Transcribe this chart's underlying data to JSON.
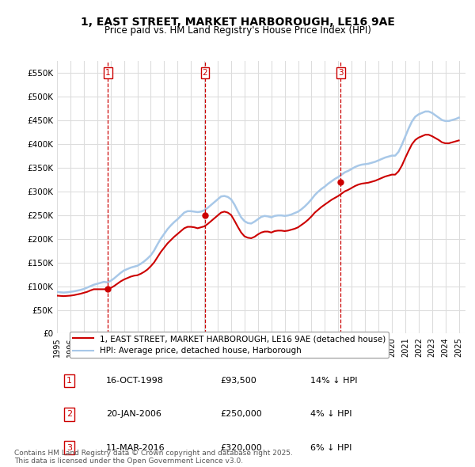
{
  "title": "1, EAST STREET, MARKET HARBOROUGH, LE16 9AE",
  "subtitle": "Price paid vs. HM Land Registry's House Price Index (HPI)",
  "hpi_color": "#a8c8e8",
  "price_color": "#cc0000",
  "background_color": "#ffffff",
  "grid_color": "#dddddd",
  "ylim": [
    0,
    575000
  ],
  "yticks": [
    0,
    50000,
    100000,
    150000,
    200000,
    250000,
    300000,
    350000,
    400000,
    450000,
    500000,
    550000
  ],
  "ytick_labels": [
    "£0",
    "£50K",
    "£100K",
    "£150K",
    "£200K",
    "£250K",
    "£300K",
    "£350K",
    "£400K",
    "£450K",
    "£500K",
    "£550K"
  ],
  "xlim_start": 1995.0,
  "xlim_end": 2025.5,
  "sale_dates": [
    1998.79,
    2006.05,
    2016.19
  ],
  "sale_prices": [
    93500,
    250000,
    320000
  ],
  "sale_labels": [
    "1",
    "2",
    "3"
  ],
  "sale_date_strs": [
    "16-OCT-1998",
    "20-JAN-2006",
    "11-MAR-2016"
  ],
  "sale_price_strs": [
    "£93,500",
    "£250,000",
    "£320,000"
  ],
  "sale_hpi_strs": [
    "14% ↓ HPI",
    "4% ↓ HPI",
    "6% ↓ HPI"
  ],
  "legend_entries": [
    "1, EAST STREET, MARKET HARBOROUGH, LE16 9AE (detached house)",
    "HPI: Average price, detached house, Harborough"
  ],
  "footer": "Contains HM Land Registry data © Crown copyright and database right 2025.\nThis data is licensed under the Open Government Licence v3.0.",
  "hpi_data_x": [
    1995.0,
    1995.25,
    1995.5,
    1995.75,
    1996.0,
    1996.25,
    1996.5,
    1996.75,
    1997.0,
    1997.25,
    1997.5,
    1997.75,
    1998.0,
    1998.25,
    1998.5,
    1998.75,
    1999.0,
    1999.25,
    1999.5,
    1999.75,
    2000.0,
    2000.25,
    2000.5,
    2000.75,
    2001.0,
    2001.25,
    2001.5,
    2001.75,
    2002.0,
    2002.25,
    2002.5,
    2002.75,
    2003.0,
    2003.25,
    2003.5,
    2003.75,
    2004.0,
    2004.25,
    2004.5,
    2004.75,
    2005.0,
    2005.25,
    2005.5,
    2005.75,
    2006.0,
    2006.25,
    2006.5,
    2006.75,
    2007.0,
    2007.25,
    2007.5,
    2007.75,
    2008.0,
    2008.25,
    2008.5,
    2008.75,
    2009.0,
    2009.25,
    2009.5,
    2009.75,
    2010.0,
    2010.25,
    2010.5,
    2010.75,
    2011.0,
    2011.25,
    2011.5,
    2011.75,
    2012.0,
    2012.25,
    2012.5,
    2012.75,
    2013.0,
    2013.25,
    2013.5,
    2013.75,
    2014.0,
    2014.25,
    2014.5,
    2014.75,
    2015.0,
    2015.25,
    2015.5,
    2015.75,
    2016.0,
    2016.25,
    2016.5,
    2016.75,
    2017.0,
    2017.25,
    2017.5,
    2017.75,
    2018.0,
    2018.25,
    2018.5,
    2018.75,
    2019.0,
    2019.25,
    2019.5,
    2019.75,
    2020.0,
    2020.25,
    2020.5,
    2020.75,
    2021.0,
    2021.25,
    2021.5,
    2021.75,
    2022.0,
    2022.25,
    2022.5,
    2022.75,
    2023.0,
    2023.25,
    2023.5,
    2023.75,
    2024.0,
    2024.25,
    2024.5,
    2024.75,
    2025.0
  ],
  "hpi_data_y": [
    88000,
    87000,
    86500,
    87000,
    88000,
    89000,
    90500,
    92000,
    94000,
    97000,
    100000,
    103000,
    105000,
    107000,
    109000,
    108000,
    111000,
    116000,
    122000,
    128000,
    133000,
    136000,
    139000,
    141000,
    143000,
    147000,
    152000,
    158000,
    165000,
    175000,
    188000,
    200000,
    210000,
    220000,
    228000,
    235000,
    241000,
    248000,
    255000,
    258000,
    258000,
    257000,
    256000,
    257000,
    260000,
    265000,
    271000,
    277000,
    283000,
    289000,
    290000,
    288000,
    283000,
    272000,
    258000,
    245000,
    237000,
    233000,
    232000,
    236000,
    241000,
    246000,
    248000,
    247000,
    245000,
    248000,
    249000,
    249000,
    248000,
    249000,
    251000,
    254000,
    257000,
    262000,
    268000,
    275000,
    283000,
    292000,
    299000,
    305000,
    310000,
    316000,
    321000,
    326000,
    330000,
    335000,
    340000,
    343000,
    347000,
    351000,
    354000,
    356000,
    357000,
    358000,
    360000,
    362000,
    365000,
    368000,
    371000,
    373000,
    375000,
    375000,
    383000,
    398000,
    415000,
    432000,
    447000,
    457000,
    462000,
    465000,
    468000,
    468000,
    465000,
    460000,
    455000,
    450000,
    448000,
    448000,
    450000,
    452000,
    455000
  ],
  "price_data_x": [
    1995.0,
    1995.25,
    1995.5,
    1995.75,
    1996.0,
    1996.25,
    1996.5,
    1996.75,
    1997.0,
    1997.25,
    1997.5,
    1997.75,
    1998.0,
    1998.25,
    1998.5,
    1998.75,
    1999.0,
    1999.25,
    1999.5,
    1999.75,
    2000.0,
    2000.25,
    2000.5,
    2000.75,
    2001.0,
    2001.25,
    2001.5,
    2001.75,
    2002.0,
    2002.25,
    2002.5,
    2002.75,
    2003.0,
    2003.25,
    2003.5,
    2003.75,
    2004.0,
    2004.25,
    2004.5,
    2004.75,
    2005.0,
    2005.25,
    2005.5,
    2005.75,
    2006.0,
    2006.25,
    2006.5,
    2006.75,
    2007.0,
    2007.25,
    2007.5,
    2007.75,
    2008.0,
    2008.25,
    2008.5,
    2008.75,
    2009.0,
    2009.25,
    2009.5,
    2009.75,
    2010.0,
    2010.25,
    2010.5,
    2010.75,
    2011.0,
    2011.25,
    2011.5,
    2011.75,
    2012.0,
    2012.25,
    2012.5,
    2012.75,
    2013.0,
    2013.25,
    2013.5,
    2013.75,
    2014.0,
    2014.25,
    2014.5,
    2014.75,
    2015.0,
    2015.25,
    2015.5,
    2015.75,
    2016.0,
    2016.25,
    2016.5,
    2016.75,
    2017.0,
    2017.25,
    2017.5,
    2017.75,
    2018.0,
    2018.25,
    2018.5,
    2018.75,
    2019.0,
    2019.25,
    2019.5,
    2019.75,
    2020.0,
    2020.25,
    2020.5,
    2020.75,
    2021.0,
    2021.25,
    2021.5,
    2021.75,
    2022.0,
    2022.25,
    2022.5,
    2022.75,
    2023.0,
    2023.25,
    2023.5,
    2023.75,
    2024.0,
    2024.25,
    2024.5,
    2024.75,
    2025.0
  ],
  "price_data_y": [
    80000,
    79500,
    79000,
    79500,
    80000,
    81000,
    82500,
    84000,
    86000,
    88000,
    91000,
    93500,
    93500,
    93500,
    93500,
    93500,
    96000,
    100000,
    105000,
    110000,
    114000,
    117000,
    120000,
    122000,
    123000,
    126000,
    130000,
    135000,
    142000,
    150000,
    161000,
    172000,
    181000,
    190000,
    197000,
    204000,
    210000,
    216000,
    222000,
    225000,
    225000,
    224000,
    222000,
    224000,
    226000,
    231000,
    237000,
    243000,
    249000,
    255000,
    257000,
    255000,
    250000,
    238000,
    225000,
    213000,
    205000,
    202000,
    201000,
    204000,
    209000,
    213000,
    215000,
    215000,
    213000,
    216000,
    217000,
    217000,
    216000,
    217000,
    219000,
    221000,
    224000,
    229000,
    234000,
    240000,
    247000,
    255000,
    261000,
    267000,
    272000,
    277000,
    282000,
    286000,
    290000,
    295000,
    300000,
    303000,
    307000,
    311000,
    314000,
    316000,
    317000,
    318000,
    320000,
    322000,
    325000,
    328000,
    331000,
    333000,
    335000,
    335000,
    342000,
    354000,
    370000,
    385000,
    399000,
    408000,
    413000,
    416000,
    419000,
    419000,
    416000,
    412000,
    408000,
    403000,
    401000,
    401000,
    403000,
    405000,
    407000
  ]
}
